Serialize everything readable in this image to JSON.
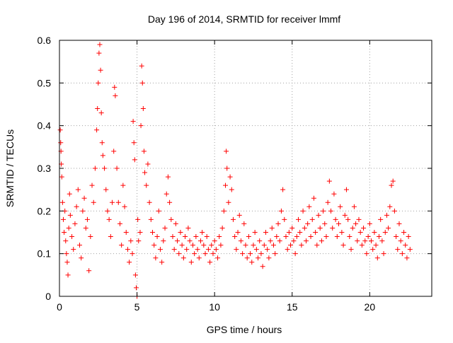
{
  "chart_data": {
    "type": "scatter",
    "title": "Day 196 of 2014, SRMTID for receiver lmmf",
    "xlabel": "GPS time / hours",
    "ylabel": "SRMTID / TECUs",
    "xlim": [
      0,
      24
    ],
    "ylim": [
      0,
      0.6
    ],
    "xticks": [
      0,
      5,
      10,
      15,
      20
    ],
    "xtick_labels": [
      "0",
      "5",
      "10",
      "15",
      "20"
    ],
    "yticks": [
      0,
      0.1,
      0.2,
      0.3,
      0.4,
      0.5,
      0.6
    ],
    "ytick_labels": [
      "0",
      "0.1",
      "0.2",
      "0.3",
      "0.4",
      "0.5",
      "0.6"
    ],
    "grid": true,
    "marker": "+",
    "color": "#ff0000",
    "series": [
      {
        "name": "SRMTID",
        "points": [
          [
            0.05,
            0.39
          ],
          [
            0.08,
            0.36
          ],
          [
            0.1,
            0.34
          ],
          [
            0.12,
            0.31
          ],
          [
            0.15,
            0.28
          ],
          [
            0.2,
            0.22
          ],
          [
            0.25,
            0.18
          ],
          [
            0.3,
            0.15
          ],
          [
            0.35,
            0.2
          ],
          [
            0.4,
            0.13
          ],
          [
            0.45,
            0.1
          ],
          [
            0.5,
            0.08
          ],
          [
            0.55,
            0.05
          ],
          [
            0.6,
            0.16
          ],
          [
            0.65,
            0.24
          ],
          [
            0.7,
            0.19
          ],
          [
            0.8,
            0.14
          ],
          [
            0.9,
            0.11
          ],
          [
            1.0,
            0.17
          ],
          [
            1.1,
            0.21
          ],
          [
            1.2,
            0.25
          ],
          [
            1.3,
            0.12
          ],
          [
            1.4,
            0.09
          ],
          [
            1.5,
            0.2
          ],
          [
            1.6,
            0.23
          ],
          [
            1.7,
            0.16
          ],
          [
            1.8,
            0.18
          ],
          [
            1.9,
            0.06
          ],
          [
            2.0,
            0.14
          ],
          [
            2.1,
            0.26
          ],
          [
            2.2,
            0.22
          ],
          [
            2.3,
            0.3
          ],
          [
            2.4,
            0.39
          ],
          [
            2.45,
            0.44
          ],
          [
            2.5,
            0.5
          ],
          [
            2.55,
            0.57
          ],
          [
            2.6,
            0.59
          ],
          [
            2.65,
            0.53
          ],
          [
            2.7,
            0.43
          ],
          [
            2.75,
            0.36
          ],
          [
            2.8,
            0.33
          ],
          [
            2.9,
            0.3
          ],
          [
            3.0,
            0.25
          ],
          [
            3.1,
            0.2
          ],
          [
            3.2,
            0.18
          ],
          [
            3.3,
            0.14
          ],
          [
            3.4,
            0.22
          ],
          [
            3.5,
            0.34
          ],
          [
            3.55,
            0.49
          ],
          [
            3.6,
            0.47
          ],
          [
            3.7,
            0.3
          ],
          [
            3.8,
            0.22
          ],
          [
            3.9,
            0.17
          ],
          [
            4.0,
            0.12
          ],
          [
            4.1,
            0.26
          ],
          [
            4.2,
            0.21
          ],
          [
            4.3,
            0.15
          ],
          [
            4.4,
            0.11
          ],
          [
            4.5,
            0.08
          ],
          [
            4.6,
            0.13
          ],
          [
            4.7,
            0.1
          ],
          [
            4.75,
            0.41
          ],
          [
            4.8,
            0.36
          ],
          [
            4.85,
            0.32
          ],
          [
            4.9,
            0.05
          ],
          [
            4.95,
            0.02
          ],
          [
            5.0,
            0.0
          ],
          [
            5.05,
            0.18
          ],
          [
            5.1,
            0.13
          ],
          [
            5.2,
            0.15
          ],
          [
            5.25,
            0.4
          ],
          [
            5.3,
            0.54
          ],
          [
            5.35,
            0.5
          ],
          [
            5.4,
            0.44
          ],
          [
            5.45,
            0.34
          ],
          [
            5.5,
            0.29
          ],
          [
            5.6,
            0.26
          ],
          [
            5.7,
            0.31
          ],
          [
            5.8,
            0.22
          ],
          [
            5.9,
            0.18
          ],
          [
            6.0,
            0.15
          ],
          [
            6.1,
            0.12
          ],
          [
            6.2,
            0.09
          ],
          [
            6.3,
            0.14
          ],
          [
            6.4,
            0.2
          ],
          [
            6.5,
            0.11
          ],
          [
            6.6,
            0.08
          ],
          [
            6.7,
            0.13
          ],
          [
            6.8,
            0.16
          ],
          [
            6.9,
            0.24
          ],
          [
            7.0,
            0.28
          ],
          [
            7.1,
            0.22
          ],
          [
            7.2,
            0.18
          ],
          [
            7.3,
            0.14
          ],
          [
            7.4,
            0.11
          ],
          [
            7.5,
            0.17
          ],
          [
            7.6,
            0.13
          ],
          [
            7.7,
            0.1
          ],
          [
            7.8,
            0.15
          ],
          [
            7.9,
            0.12
          ],
          [
            8.0,
            0.09
          ],
          [
            8.1,
            0.14
          ],
          [
            8.2,
            0.11
          ],
          [
            8.3,
            0.16
          ],
          [
            8.4,
            0.13
          ],
          [
            8.5,
            0.08
          ],
          [
            8.6,
            0.12
          ],
          [
            8.7,
            0.1
          ],
          [
            8.8,
            0.14
          ],
          [
            8.9,
            0.11
          ],
          [
            9.0,
            0.09
          ],
          [
            9.1,
            0.13
          ],
          [
            9.2,
            0.15
          ],
          [
            9.3,
            0.12
          ],
          [
            9.4,
            0.1
          ],
          [
            9.5,
            0.14
          ],
          [
            9.6,
            0.11
          ],
          [
            9.7,
            0.08
          ],
          [
            9.8,
            0.12
          ],
          [
            9.9,
            0.1
          ],
          [
            10.0,
            0.13
          ],
          [
            10.1,
            0.11
          ],
          [
            10.2,
            0.09
          ],
          [
            10.3,
            0.14
          ],
          [
            10.4,
            0.12
          ],
          [
            10.5,
            0.16
          ],
          [
            10.6,
            0.2
          ],
          [
            10.7,
            0.26
          ],
          [
            10.75,
            0.34
          ],
          [
            10.8,
            0.3
          ],
          [
            10.9,
            0.22
          ],
          [
            11.0,
            0.28
          ],
          [
            11.1,
            0.25
          ],
          [
            11.2,
            0.18
          ],
          [
            11.3,
            0.14
          ],
          [
            11.4,
            0.11
          ],
          [
            11.5,
            0.15
          ],
          [
            11.6,
            0.19
          ],
          [
            11.7,
            0.13
          ],
          [
            11.8,
            0.1
          ],
          [
            11.9,
            0.17
          ],
          [
            12.0,
            0.12
          ],
          [
            12.1,
            0.09
          ],
          [
            12.2,
            0.14
          ],
          [
            12.3,
            0.1
          ],
          [
            12.4,
            0.08
          ],
          [
            12.5,
            0.12
          ],
          [
            12.6,
            0.15
          ],
          [
            12.7,
            0.11
          ],
          [
            12.8,
            0.09
          ],
          [
            12.9,
            0.13
          ],
          [
            13.0,
            0.1
          ],
          [
            13.1,
            0.07
          ],
          [
            13.2,
            0.12
          ],
          [
            13.3,
            0.15
          ],
          [
            13.4,
            0.11
          ],
          [
            13.5,
            0.09
          ],
          [
            13.6,
            0.13
          ],
          [
            13.7,
            0.16
          ],
          [
            13.8,
            0.12
          ],
          [
            13.9,
            0.1
          ],
          [
            14.0,
            0.14
          ],
          [
            14.1,
            0.17
          ],
          [
            14.2,
            0.13
          ],
          [
            14.3,
            0.2
          ],
          [
            14.4,
            0.25
          ],
          [
            14.5,
            0.18
          ],
          [
            14.6,
            0.14
          ],
          [
            14.7,
            0.11
          ],
          [
            14.8,
            0.15
          ],
          [
            14.9,
            0.12
          ],
          [
            15.0,
            0.16
          ],
          [
            15.1,
            0.13
          ],
          [
            15.2,
            0.1
          ],
          [
            15.3,
            0.14
          ],
          [
            15.4,
            0.18
          ],
          [
            15.5,
            0.15
          ],
          [
            15.6,
            0.12
          ],
          [
            15.7,
            0.2
          ],
          [
            15.8,
            0.16
          ],
          [
            15.9,
            0.13
          ],
          [
            16.0,
            0.17
          ],
          [
            16.1,
            0.21
          ],
          [
            16.2,
            0.14
          ],
          [
            16.3,
            0.18
          ],
          [
            16.4,
            0.23
          ],
          [
            16.5,
            0.15
          ],
          [
            16.6,
            0.12
          ],
          [
            16.7,
            0.19
          ],
          [
            16.8,
            0.16
          ],
          [
            16.9,
            0.13
          ],
          [
            17.0,
            0.2
          ],
          [
            17.1,
            0.17
          ],
          [
            17.2,
            0.14
          ],
          [
            17.3,
            0.22
          ],
          [
            17.4,
            0.27
          ],
          [
            17.5,
            0.2
          ],
          [
            17.6,
            0.16
          ],
          [
            17.7,
            0.24
          ],
          [
            17.8,
            0.18
          ],
          [
            17.9,
            0.14
          ],
          [
            18.0,
            0.17
          ],
          [
            18.1,
            0.21
          ],
          [
            18.2,
            0.15
          ],
          [
            18.3,
            0.12
          ],
          [
            18.4,
            0.19
          ],
          [
            18.5,
            0.25
          ],
          [
            18.6,
            0.18
          ],
          [
            18.7,
            0.14
          ],
          [
            18.8,
            0.11
          ],
          [
            18.9,
            0.16
          ],
          [
            19.0,
            0.21
          ],
          [
            19.1,
            0.17
          ],
          [
            19.2,
            0.13
          ],
          [
            19.3,
            0.18
          ],
          [
            19.4,
            0.15
          ],
          [
            19.5,
            0.12
          ],
          [
            19.6,
            0.16
          ],
          [
            19.7,
            0.13
          ],
          [
            19.8,
            0.1
          ],
          [
            19.9,
            0.14
          ],
          [
            20.0,
            0.17
          ],
          [
            20.1,
            0.13
          ],
          [
            20.2,
            0.11
          ],
          [
            20.3,
            0.15
          ],
          [
            20.4,
            0.12
          ],
          [
            20.5,
            0.09
          ],
          [
            20.6,
            0.14
          ],
          [
            20.7,
            0.18
          ],
          [
            20.8,
            0.13
          ],
          [
            20.9,
            0.1
          ],
          [
            21.0,
            0.15
          ],
          [
            21.1,
            0.19
          ],
          [
            21.2,
            0.16
          ],
          [
            21.3,
            0.21
          ],
          [
            21.4,
            0.26
          ],
          [
            21.5,
            0.27
          ],
          [
            21.6,
            0.2
          ],
          [
            21.7,
            0.14
          ],
          [
            21.8,
            0.11
          ],
          [
            21.9,
            0.17
          ],
          [
            22.0,
            0.13
          ],
          [
            22.1,
            0.1
          ],
          [
            22.2,
            0.15
          ],
          [
            22.3,
            0.12
          ],
          [
            22.4,
            0.09
          ],
          [
            22.5,
            0.14
          ],
          [
            22.6,
            0.11
          ]
        ]
      }
    ]
  }
}
